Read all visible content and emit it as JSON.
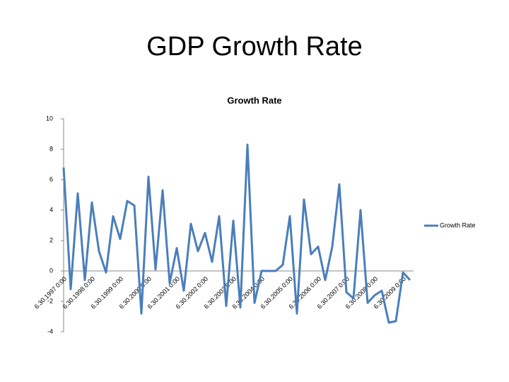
{
  "chart_data": {
    "type": "line",
    "slide_title": "GDP Growth Rate",
    "title": "Growth Rate",
    "categories": [
      "6.30.1997 0:00",
      null,
      null,
      null,
      "6.30.1998 0:00",
      null,
      null,
      null,
      "6.30.1999 0:00",
      null,
      null,
      null,
      "6.30.2000 0:00",
      null,
      null,
      null,
      "6.30.2001 0:00",
      null,
      null,
      null,
      "6.30.2002 0:00",
      null,
      null,
      null,
      "6.30.2003 0:00",
      null,
      null,
      null,
      "6.30.2004 0:00",
      null,
      null,
      null,
      "6.30.2005 0:00",
      null,
      null,
      null,
      "6.30.2006 0:00",
      null,
      null,
      null,
      "6.30.2007 0:00",
      null,
      null,
      null,
      "6.30.2008 0:00",
      null,
      null,
      null,
      "6.30.2009 0:00",
      null
    ],
    "series": [
      {
        "name": "Growth Rate",
        "color": "#4a7ebb",
        "values": [
          6.8,
          -1.2,
          5.1,
          -0.6,
          4.5,
          1.3,
          -0.1,
          3.6,
          2.1,
          4.6,
          4.3,
          -2.8,
          6.2,
          0.1,
          5.3,
          -0.8,
          1.5,
          -1.3,
          3.1,
          1.3,
          2.5,
          0.6,
          3.6,
          -2.3,
          3.3,
          -2.4,
          8.3,
          -2.1,
          0,
          0,
          0,
          0.4,
          3.6,
          -2.8,
          4.7,
          1.1,
          1.6,
          -0.6,
          1.6,
          5.7,
          -1.4,
          -1.8,
          4,
          -2.1,
          -1.6,
          -1.3,
          -3.4,
          -3.3,
          -0.1,
          -0.6
        ]
      }
    ],
    "ylim": [
      -4,
      10
    ],
    "yticks": [
      -4,
      -2,
      0,
      2,
      4,
      6,
      8,
      10
    ],
    "grid": false,
    "legend": "right"
  }
}
